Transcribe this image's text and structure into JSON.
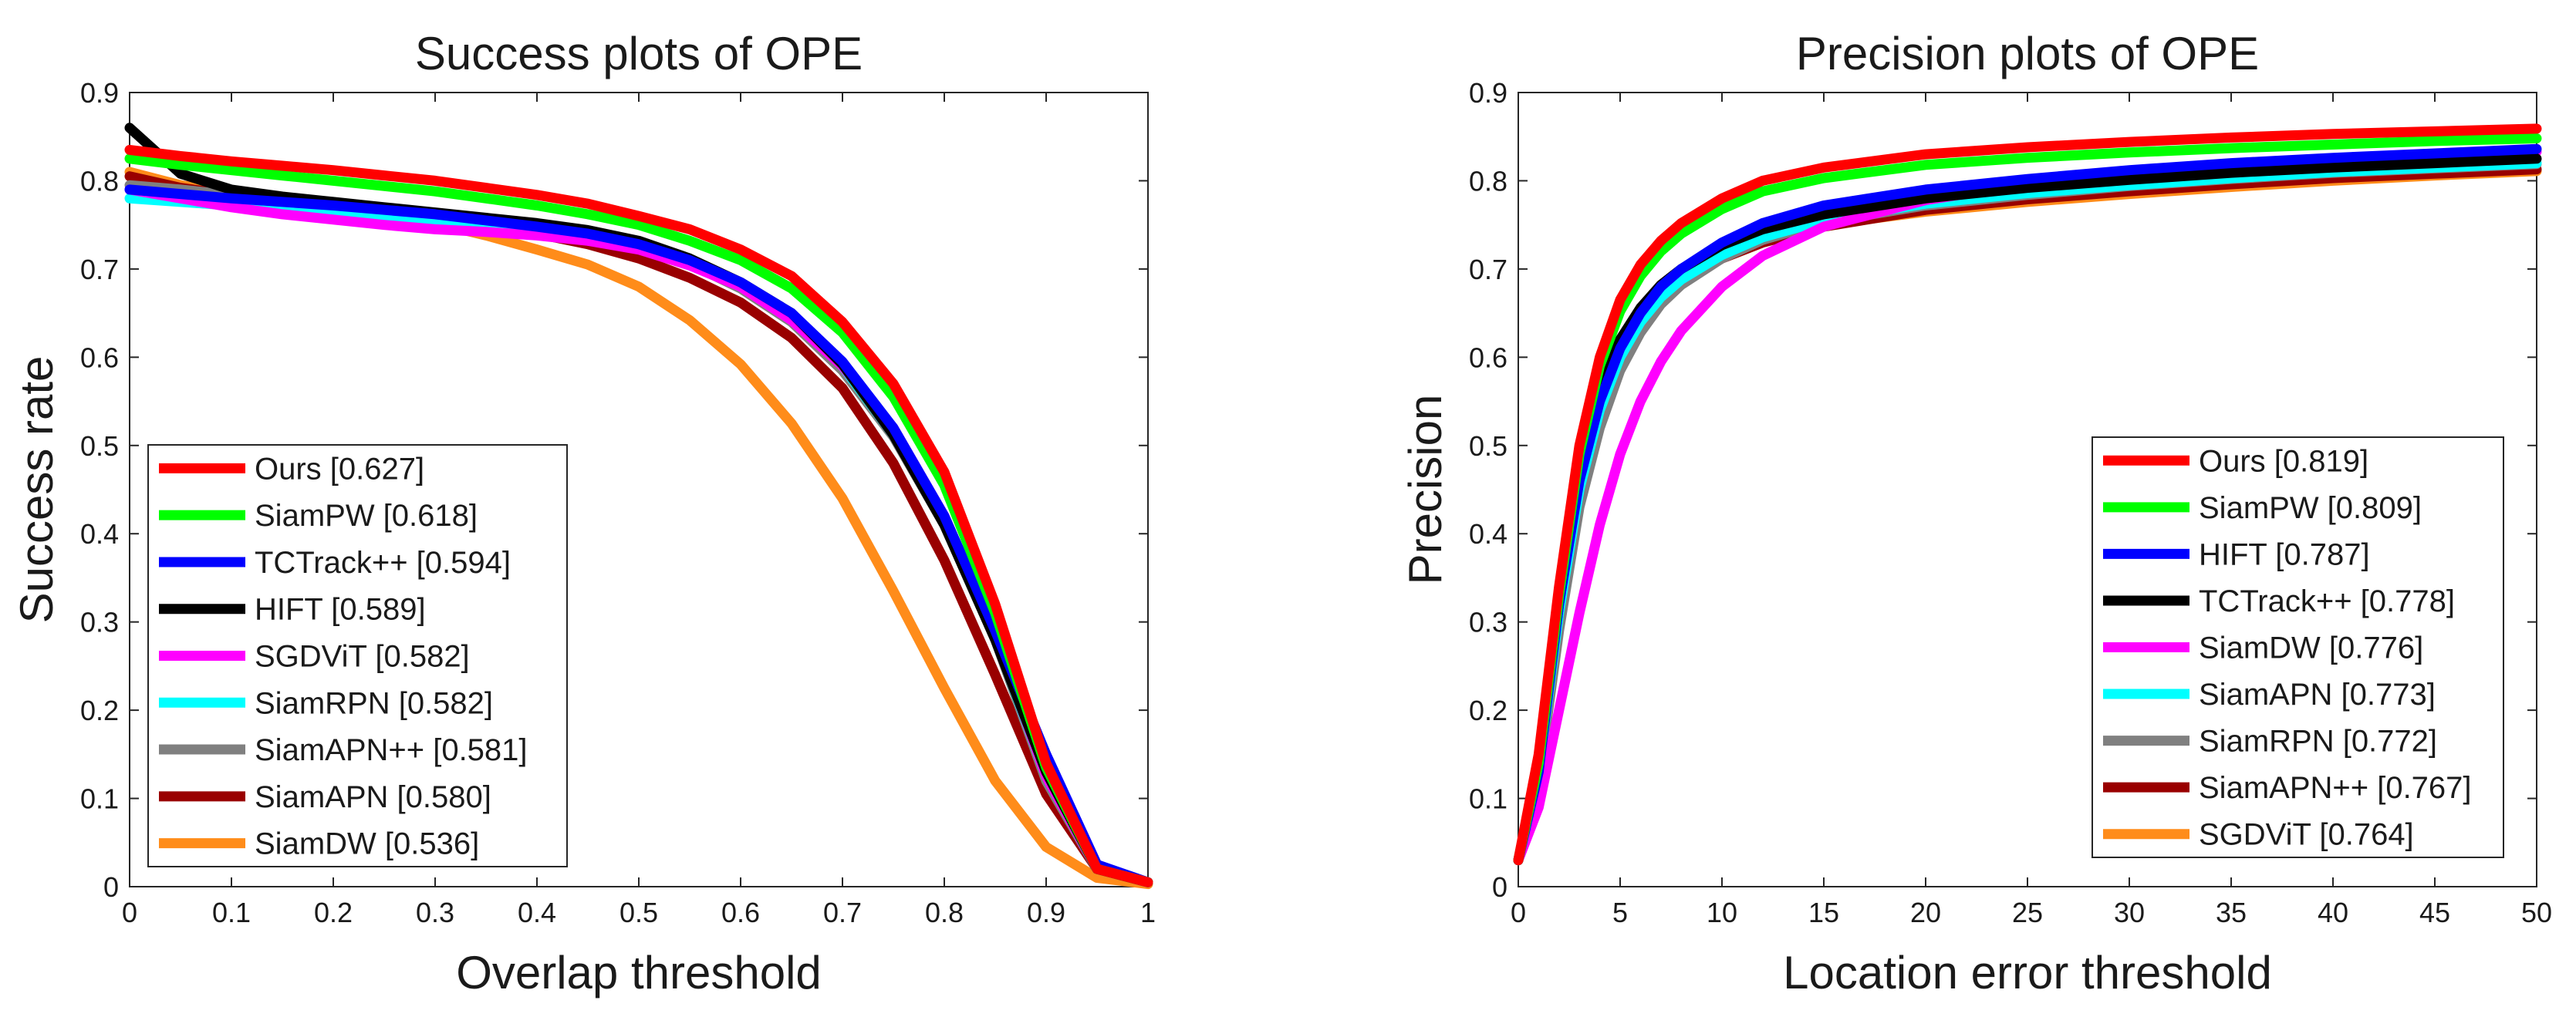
{
  "chart_data": [
    {
      "type": "line",
      "title": "Success plots of OPE",
      "xlabel": "Overlap threshold",
      "ylabel": "Success rate",
      "xlim": [
        0,
        1
      ],
      "ylim": [
        0,
        0.9
      ],
      "xticks": [
        "0",
        "0.1",
        "0.2",
        "0.3",
        "0.4",
        "0.5",
        "0.6",
        "0.7",
        "0.8",
        "0.9",
        "1"
      ],
      "yticks": [
        "0",
        "0.1",
        "0.2",
        "0.3",
        "0.4",
        "0.5",
        "0.6",
        "0.7",
        "0.8",
        "0.9"
      ],
      "grid": false,
      "legend_position": "bottom-left",
      "x": [
        0,
        0.05,
        0.1,
        0.15,
        0.2,
        0.25,
        0.3,
        0.35,
        0.4,
        0.45,
        0.5,
        0.55,
        0.6,
        0.65,
        0.7,
        0.75,
        0.8,
        0.85,
        0.9,
        0.95,
        1.0
      ],
      "series": [
        {
          "name": "Ours",
          "legend": "Ours [0.627]",
          "color": "#ff0000",
          "values": [
            0.835,
            0.828,
            0.822,
            0.817,
            0.812,
            0.806,
            0.8,
            0.792,
            0.784,
            0.774,
            0.76,
            0.745,
            0.722,
            0.692,
            0.64,
            0.57,
            0.47,
            0.32,
            0.14,
            0.02,
            0.005
          ]
        },
        {
          "name": "SiamPW",
          "legend": "SiamPW [0.618]",
          "color": "#00ff00",
          "values": [
            0.825,
            0.818,
            0.812,
            0.806,
            0.8,
            0.794,
            0.788,
            0.78,
            0.772,
            0.762,
            0.75,
            0.732,
            0.71,
            0.678,
            0.628,
            0.555,
            0.455,
            0.31,
            0.135,
            0.02,
            0.005
          ]
        },
        {
          "name": "TCTrack++",
          "legend": "TCTrack++ [0.594]",
          "color": "#0000ff",
          "values": [
            0.79,
            0.785,
            0.78,
            0.776,
            0.772,
            0.767,
            0.762,
            0.755,
            0.748,
            0.74,
            0.728,
            0.71,
            0.685,
            0.65,
            0.595,
            0.52,
            0.42,
            0.29,
            0.15,
            0.025,
            0.005
          ]
        },
        {
          "name": "HIFT",
          "legend": "HIFT [0.589]",
          "color": "#000000",
          "values": [
            0.86,
            0.808,
            0.79,
            0.782,
            0.776,
            0.77,
            0.764,
            0.758,
            0.752,
            0.744,
            0.732,
            0.712,
            0.685,
            0.65,
            0.592,
            0.512,
            0.41,
            0.28,
            0.13,
            0.02,
            0.005
          ]
        },
        {
          "name": "SGDViT",
          "legend": "SGDViT [0.582]",
          "color": "#ff00ff",
          "values": [
            0.79,
            0.78,
            0.77,
            0.762,
            0.756,
            0.75,
            0.745,
            0.742,
            0.738,
            0.732,
            0.722,
            0.704,
            0.68,
            0.642,
            0.59,
            0.52,
            0.42,
            0.285,
            0.125,
            0.02,
            0.005
          ]
        },
        {
          "name": "SiamRPN",
          "legend": "SiamRPN [0.582]",
          "color": "#00ffff",
          "values": [
            0.78,
            0.776,
            0.772,
            0.768,
            0.764,
            0.76,
            0.755,
            0.75,
            0.744,
            0.736,
            0.725,
            0.707,
            0.682,
            0.645,
            0.59,
            0.512,
            0.412,
            0.282,
            0.125,
            0.02,
            0.005
          ]
        },
        {
          "name": "SiamAPN++",
          "legend": "SiamAPN++ [0.581]",
          "color": "#808080",
          "values": [
            0.795,
            0.79,
            0.784,
            0.778,
            0.772,
            0.766,
            0.76,
            0.754,
            0.747,
            0.738,
            0.726,
            0.706,
            0.678,
            0.64,
            0.585,
            0.51,
            0.41,
            0.28,
            0.12,
            0.02,
            0.005
          ]
        },
        {
          "name": "SiamAPN",
          "legend": "SiamAPN [0.580]",
          "color": "#990000",
          "values": [
            0.805,
            0.792,
            0.784,
            0.777,
            0.77,
            0.764,
            0.758,
            0.75,
            0.74,
            0.728,
            0.712,
            0.69,
            0.662,
            0.622,
            0.565,
            0.48,
            0.37,
            0.24,
            0.105,
            0.02,
            0.005
          ]
        },
        {
          "name": "SiamDW",
          "legend": "SiamDW [0.536]",
          "color": "#ff8c1a",
          "values": [
            0.81,
            0.795,
            0.786,
            0.778,
            0.77,
            0.762,
            0.752,
            0.738,
            0.722,
            0.705,
            0.68,
            0.642,
            0.592,
            0.525,
            0.44,
            0.335,
            0.225,
            0.12,
            0.045,
            0.01,
            0.003
          ]
        }
      ]
    },
    {
      "type": "line",
      "title": "Precision plots of OPE",
      "xlabel": "Location error threshold",
      "ylabel": "Precision",
      "xlim": [
        0,
        50
      ],
      "ylim": [
        0,
        0.9
      ],
      "xticks": [
        "0",
        "5",
        "10",
        "15",
        "20",
        "25",
        "30",
        "35",
        "40",
        "45",
        "50"
      ],
      "yticks": [
        "0",
        "0.1",
        "0.2",
        "0.3",
        "0.4",
        "0.5",
        "0.6",
        "0.7",
        "0.8",
        "0.9"
      ],
      "grid": false,
      "legend_position": "bottom-right",
      "x": [
        0,
        1,
        2,
        3,
        4,
        5,
        6,
        7,
        8,
        10,
        12,
        15,
        20,
        25,
        30,
        35,
        40,
        45,
        50
      ],
      "series": [
        {
          "name": "Ours",
          "legend": "Ours [0.819]",
          "color": "#ff0000",
          "values": [
            0.03,
            0.15,
            0.34,
            0.5,
            0.6,
            0.665,
            0.705,
            0.732,
            0.752,
            0.78,
            0.8,
            0.815,
            0.83,
            0.838,
            0.844,
            0.849,
            0.853,
            0.856,
            0.859
          ]
        },
        {
          "name": "SiamPW",
          "legend": "SiamPW [0.809]",
          "color": "#00ff00",
          "values": [
            0.03,
            0.14,
            0.33,
            0.49,
            0.59,
            0.652,
            0.692,
            0.72,
            0.74,
            0.768,
            0.788,
            0.803,
            0.818,
            0.826,
            0.832,
            0.837,
            0.841,
            0.845,
            0.848
          ]
        },
        {
          "name": "HIFT",
          "legend": "HIFT [0.787]",
          "color": "#0000ff",
          "values": [
            0.03,
            0.13,
            0.32,
            0.46,
            0.55,
            0.61,
            0.65,
            0.68,
            0.7,
            0.73,
            0.752,
            0.772,
            0.79,
            0.802,
            0.812,
            0.82,
            0.826,
            0.831,
            0.836
          ]
        },
        {
          "name": "TCTrack++",
          "legend": "TCTrack++ [0.778]",
          "color": "#000000",
          "values": [
            0.03,
            0.14,
            0.32,
            0.47,
            0.56,
            0.62,
            0.656,
            0.682,
            0.7,
            0.727,
            0.745,
            0.762,
            0.78,
            0.792,
            0.801,
            0.809,
            0.815,
            0.82,
            0.825
          ]
        },
        {
          "name": "SiamDW",
          "legend": "SiamDW [0.776]",
          "color": "#ff00ff",
          "values": [
            0.03,
            0.09,
            0.2,
            0.31,
            0.41,
            0.49,
            0.55,
            0.595,
            0.63,
            0.68,
            0.715,
            0.748,
            0.778,
            0.796,
            0.808,
            0.817,
            0.824,
            0.829,
            0.833
          ]
        },
        {
          "name": "SiamAPN",
          "legend": "SiamAPN [0.773]",
          "color": "#00ffff",
          "values": [
            0.03,
            0.13,
            0.31,
            0.45,
            0.54,
            0.6,
            0.64,
            0.668,
            0.688,
            0.716,
            0.736,
            0.755,
            0.774,
            0.786,
            0.795,
            0.803,
            0.81,
            0.815,
            0.82
          ]
        },
        {
          "name": "SiamRPN",
          "legend": "SiamRPN [0.772]",
          "color": "#808080",
          "values": [
            0.03,
            0.12,
            0.29,
            0.43,
            0.52,
            0.585,
            0.628,
            0.66,
            0.682,
            0.712,
            0.733,
            0.753,
            0.772,
            0.784,
            0.794,
            0.802,
            0.809,
            0.814,
            0.819
          ]
        },
        {
          "name": "SiamAPN++",
          "legend": "SiamAPN++ [0.767]",
          "color": "#990000",
          "values": [
            0.03,
            0.13,
            0.31,
            0.45,
            0.54,
            0.6,
            0.638,
            0.665,
            0.685,
            0.712,
            0.73,
            0.748,
            0.767,
            0.779,
            0.788,
            0.796,
            0.803,
            0.808,
            0.813
          ]
        },
        {
          "name": "SGDViT",
          "legend": "SGDViT [0.764]",
          "color": "#ff8c1a",
          "values": [
            0.03,
            0.14,
            0.32,
            0.47,
            0.56,
            0.618,
            0.655,
            0.68,
            0.697,
            0.72,
            0.735,
            0.75,
            0.765,
            0.776,
            0.785,
            0.793,
            0.8,
            0.806,
            0.811
          ]
        }
      ]
    }
  ]
}
